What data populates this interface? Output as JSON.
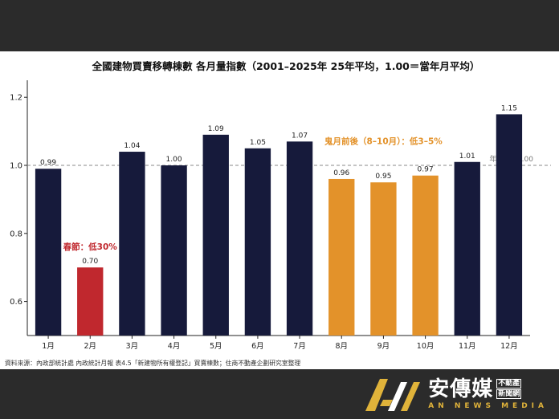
{
  "chart_data": {
    "type": "bar",
    "title": "全國建物買賣移轉棟數 各月量指數（2001–2025年 25年平均，1.00＝當年月平均）",
    "categories": [
      "1月",
      "2月",
      "3月",
      "4月",
      "5月",
      "6月",
      "7月",
      "8月",
      "9月",
      "10月",
      "11月",
      "12月"
    ],
    "values": [
      0.99,
      0.7,
      1.04,
      1.0,
      1.09,
      1.05,
      1.07,
      0.96,
      0.95,
      0.97,
      1.01,
      1.15
    ],
    "value_labels": [
      "0.99",
      "0.70",
      "1.04",
      "1.00",
      "1.09",
      "1.05",
      "1.07",
      "0.96",
      "0.95",
      "0.97",
      "1.01",
      "1.15"
    ],
    "bar_colors": [
      "#161a3b",
      "#c0282e",
      "#161a3b",
      "#161a3b",
      "#161a3b",
      "#161a3b",
      "#161a3b",
      "#e3922a",
      "#e3922a",
      "#e3922a",
      "#161a3b",
      "#161a3b"
    ],
    "ylim": [
      0.5,
      1.25
    ],
    "yticks": [
      0.6,
      0.8,
      1.0,
      1.2
    ],
    "ytick_labels": [
      "0.6",
      "0.8",
      "1.0",
      "1.2"
    ],
    "xlabel": "",
    "ylabel": "",
    "grid": false,
    "reference_line": {
      "value": 1.0,
      "label": "年平均=1.00",
      "color": "#8a8a8a"
    },
    "annotations": [
      {
        "text": "春節：低30%",
        "color": "#c0282e"
      },
      {
        "text": "鬼月前後（8–10月）：低3–5%",
        "color": "#e3922a"
      }
    ],
    "source": "資料來源：內政部統計處 內政統計月報 表4.5「新建物所有權登記」買賣棟數；住商不動產企劃研究室整理"
  },
  "logo": {
    "name": "安傳媒",
    "side_top": "不動產",
    "side_bottom": "新聞網",
    "sub": "AN NEWS MEDIA",
    "colors": {
      "gold": "#e0b33a",
      "white": "#ffffff"
    }
  }
}
